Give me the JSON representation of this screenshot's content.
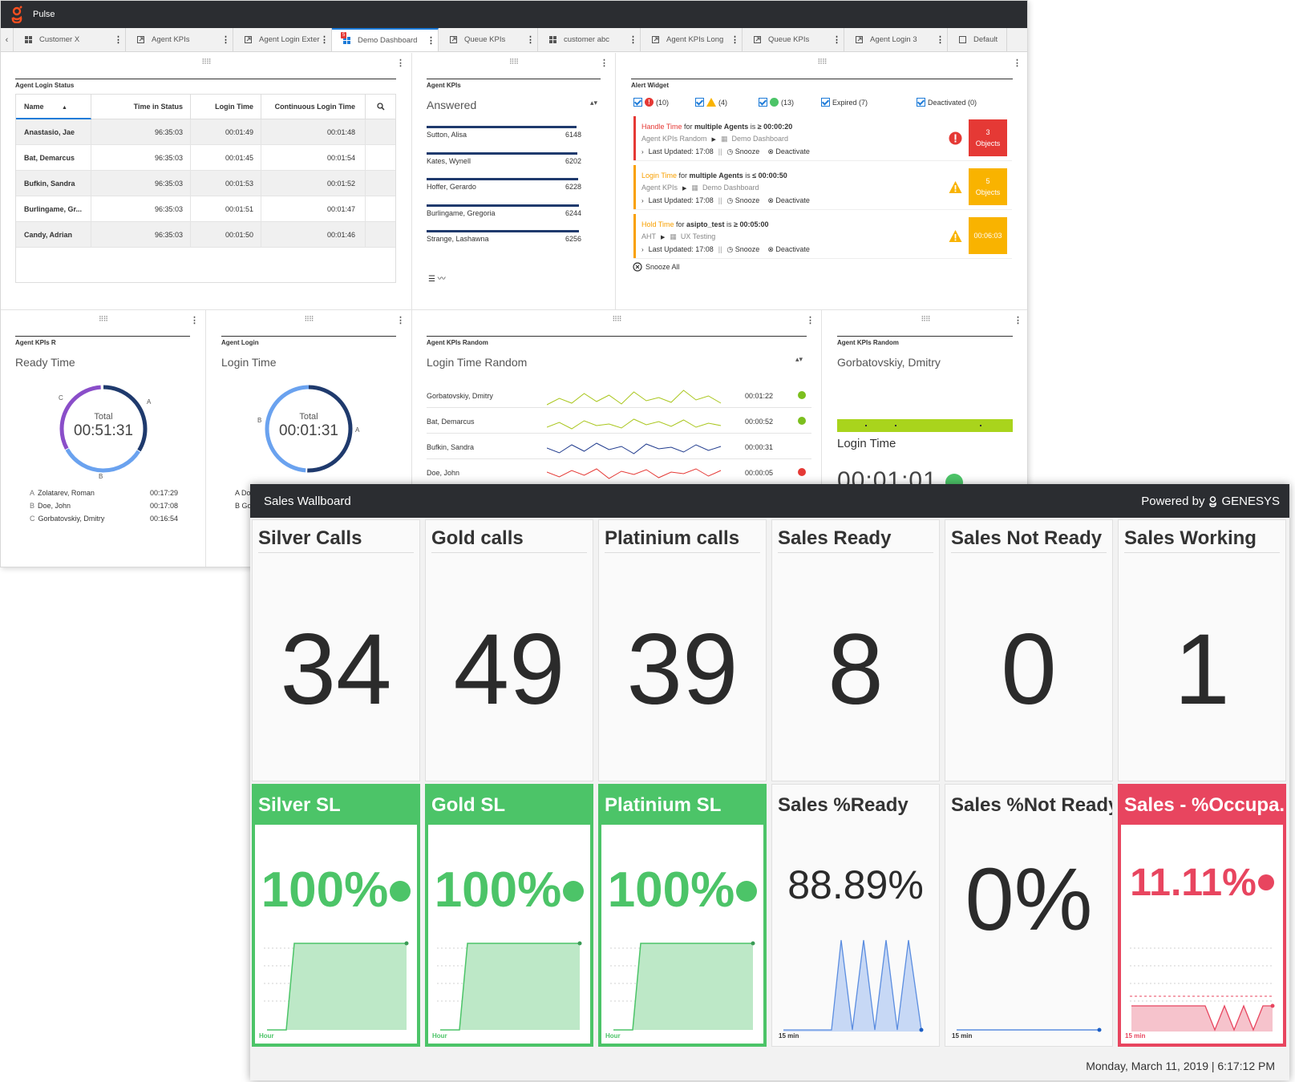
{
  "pulse": {
    "app_title": "Pulse",
    "tabs": [
      {
        "label": "Customer X",
        "icon": "grid-icon"
      },
      {
        "label": "Agent KPIs",
        "icon": "external-icon"
      },
      {
        "label": "Agent Login Exter",
        "icon": "external-icon"
      },
      {
        "label": "Demo Dashboard",
        "icon": "grid-icon",
        "badge": "5",
        "active": true
      },
      {
        "label": "Queue KPIs",
        "icon": "external-icon"
      },
      {
        "label": "customer abc",
        "icon": "grid-icon"
      },
      {
        "label": "Agent KPIs Long",
        "icon": "external-icon"
      },
      {
        "label": "Queue KPIs",
        "icon": "external-icon"
      },
      {
        "label": "Agent Login 3",
        "icon": "external-icon"
      },
      {
        "label": "Default",
        "icon": "square-icon"
      }
    ],
    "agent_login_status": {
      "title": "Agent Login Status",
      "columns": [
        "Name",
        "Time in Status",
        "Login Time",
        "Continuous Login Time"
      ],
      "rows": [
        [
          "Anastasio, Jae",
          "96:35:03",
          "00:01:49",
          "00:01:48"
        ],
        [
          "Bat, Demarcus",
          "96:35:03",
          "00:01:45",
          "00:01:54"
        ],
        [
          "Bufkin, Sandra",
          "96:35:03",
          "00:01:53",
          "00:01:52"
        ],
        [
          "Burlingame, Gr...",
          "96:35:03",
          "00:01:51",
          "00:01:47"
        ],
        [
          "Candy, Adrian",
          "96:35:03",
          "00:01:50",
          "00:01:46"
        ]
      ]
    },
    "agent_kpis": {
      "title": "Agent KPIs",
      "metric": "Answered",
      "rows": [
        {
          "name": "Sutton, Alisa",
          "value": "6148"
        },
        {
          "name": "Kates, Wynell",
          "value": "6202"
        },
        {
          "name": "Hoffer, Gerardo",
          "value": "6228"
        },
        {
          "name": "Burlingame, Gregoria",
          "value": "6244"
        },
        {
          "name": "Strange, Lashawna",
          "value": "6256"
        }
      ]
    },
    "alert_widget": {
      "title": "Alert Widget",
      "filters": [
        "(10)",
        "(4)",
        "(13)",
        "Expired (7)",
        "Deactivated (0)"
      ],
      "alerts": [
        {
          "metric": "Handle Time",
          "for": "for",
          "subject": "multiple Agents",
          "is": "is",
          "cond": "≥ 00:00:20",
          "source": "Agent KPIs Random",
          "dash": "Demo Dashboard",
          "updated_label": "Last Updated:",
          "updated": "17:08",
          "snooze": "Snooze",
          "deactivate": "Deactivate",
          "obj1": "3",
          "obj2": "Objects",
          "color": "#e53935",
          "metric_color": "#e53935"
        },
        {
          "metric": "Login Time",
          "for": "for",
          "subject": "multiple Agents",
          "is": "is",
          "cond": "≤ 00:00:50",
          "source": "Agent KPIs",
          "dash": "Demo Dashboard",
          "updated_label": "Last Updated:",
          "updated": "17:08",
          "snooze": "Snooze",
          "deactivate": "Deactivate",
          "obj1": "5",
          "obj2": "Objects",
          "color": "#f9b300",
          "metric_color": "#f9a000"
        },
        {
          "metric": "Hold Time",
          "for": "for",
          "subject": "asipto_test",
          "is": "is",
          "cond": "≥ 00:05:00",
          "source": "AHT",
          "dash": "UX Testing",
          "updated_label": "Last Updated:",
          "updated": "17:08",
          "snooze": "Snooze",
          "deactivate": "Deactivate",
          "obj1": "00:06:03",
          "obj2": "",
          "color": "#f9b300",
          "metric_color": "#f9a000"
        }
      ],
      "snooze_all": "Snooze All"
    },
    "agent_kpis_r": {
      "title": "Agent KPIs R",
      "metric": "Ready Time",
      "total_label": "Total",
      "total": "00:51:31",
      "legend": [
        {
          "key": "A",
          "name": "Zolatarev, Roman",
          "value": "00:17:29"
        },
        {
          "key": "B",
          "name": "Doe, John",
          "value": "00:17:08"
        },
        {
          "key": "C",
          "name": "Gorbatovskiy, Dmitry",
          "value": "00:16:54"
        }
      ]
    },
    "agent_login": {
      "title": "Agent Login",
      "metric": "Login Time",
      "total_label": "Total",
      "total": "00:01:31",
      "legend_keys": [
        "A",
        "B"
      ],
      "legend_frag": [
        "Do",
        "Go"
      ]
    },
    "agent_kpis_random": {
      "title": "Agent KPIs Random",
      "metric": "Login Time Random",
      "rows": [
        {
          "name": "Gorbatovskiy, Dmitry",
          "value": "00:01:22",
          "status": "ok",
          "color": "#a9c61c"
        },
        {
          "name": "Bat, Demarcus",
          "value": "00:00:52",
          "status": "ok",
          "color": "#a9c61c"
        },
        {
          "name": "Bufkin, Sandra",
          "value": "00:00:31",
          "status": "none",
          "color": "#1f3a8d"
        },
        {
          "name": "Doe, John",
          "value": "00:00:05",
          "status": "error",
          "color": "#e53935"
        }
      ]
    },
    "agent_kpis_random2": {
      "title": "Agent KPIs Random",
      "agent": "Gorbatovskiy, Dmitry",
      "metric": "Login Time",
      "value": "00:01:01"
    }
  },
  "wallboard": {
    "title": "Sales Wallboard",
    "powered_by": "Powered by",
    "brand": "GENESYS",
    "tiles": [
      {
        "title": "Silver Calls",
        "value": "34"
      },
      {
        "title": "Gold calls",
        "value": "49"
      },
      {
        "title": "Platinium calls",
        "value": "39"
      },
      {
        "title": "Sales Ready",
        "value": "8"
      },
      {
        "title": "Sales Not Ready",
        "value": "0"
      },
      {
        "title": "Sales Working",
        "value": "1"
      }
    ],
    "sl_tiles": [
      {
        "title": "Silver SL",
        "value": "100%",
        "axis": "Hour",
        "style": "green"
      },
      {
        "title": "Gold SL",
        "value": "100%",
        "axis": "Hour",
        "style": "green"
      },
      {
        "title": "Platinium SL",
        "value": "100%",
        "axis": "Hour",
        "style": "green"
      },
      {
        "title": "Sales %Ready",
        "value": "88.89%",
        "axis": "15 min",
        "style": "plain"
      },
      {
        "title": "Sales %Not Ready",
        "value": "0%",
        "axis": "15 min",
        "style": "plain"
      },
      {
        "title": "Sales - %Occupa...",
        "value": "11.11%",
        "axis": "15 min",
        "style": "red"
      }
    ],
    "datetime": "Monday, March 11, 2019 | 6:17:12 PM",
    "colors": {
      "green": "#4cc468",
      "red": "#e8455f",
      "blue": "#1d7bd8",
      "dark": "#2b2d31"
    }
  }
}
